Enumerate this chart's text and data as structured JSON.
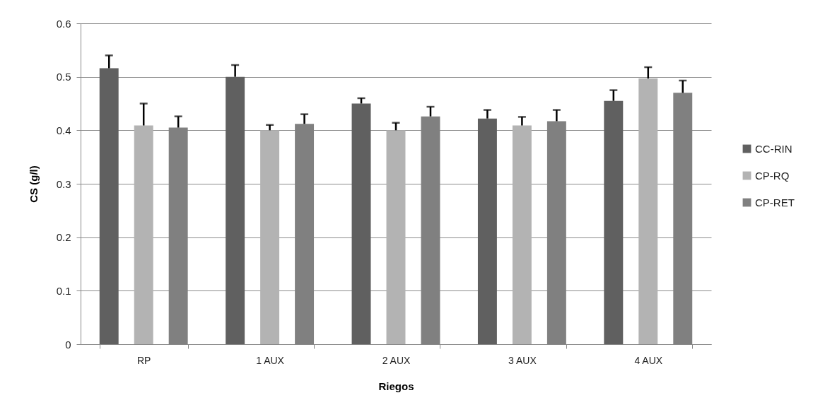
{
  "chart_data": {
    "type": "bar",
    "xlabel": "Riegos",
    "ylabel": "CS (g/l)",
    "categories": [
      "RP",
      "1 AUX",
      "2 AUX",
      "3 AUX",
      "4 AUX"
    ],
    "series": [
      {
        "name": "CC-RIN",
        "color": "#606060",
        "values": [
          0.516,
          0.5,
          0.45,
          0.422,
          0.455
        ],
        "errors": [
          [
            0.516,
            0.54
          ],
          [
            0.5,
            0.522
          ],
          [
            0.45,
            0.46
          ],
          [
            0.422,
            0.438
          ],
          [
            0.455,
            0.475
          ]
        ]
      },
      {
        "name": "CP-RQ",
        "color": "#b3b3b3",
        "values": [
          0.409,
          0.4,
          0.4,
          0.409,
          0.497
        ],
        "errors": [
          [
            0.409,
            0.45
          ],
          [
            0.4,
            0.41
          ],
          [
            0.4,
            0.414
          ],
          [
            0.409,
            0.425
          ],
          [
            0.497,
            0.518
          ]
        ]
      },
      {
        "name": "CP-RET",
        "color": "#808080",
        "values": [
          0.405,
          0.412,
          0.426,
          0.417,
          0.47
        ],
        "errors": [
          [
            0.405,
            0.426
          ],
          [
            0.412,
            0.43
          ],
          [
            0.426,
            0.444
          ],
          [
            0.417,
            0.438
          ],
          [
            0.47,
            0.493
          ]
        ]
      }
    ],
    "ylim": [
      0,
      0.6
    ],
    "yticks": [
      0,
      0.1,
      0.2,
      0.3,
      0.4,
      0.5,
      0.6
    ],
    "grid": "y",
    "legend": "right"
  }
}
